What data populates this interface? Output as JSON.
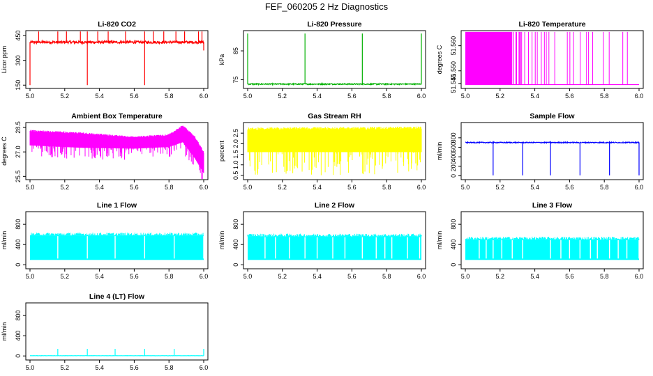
{
  "title": "FEF_060205  2 Hz Diagnostics",
  "chart_data": [
    {
      "type": "line",
      "title": "Li-820 CO2",
      "ylabel": "Licor ppm",
      "color": "#ff0000",
      "xlim": [
        5.0,
        6.0
      ],
      "ylim": [
        130,
        480
      ],
      "xticks": [
        "5.0",
        "5.2",
        "5.4",
        "5.6",
        "5.8",
        "6.0"
      ],
      "yticks": [
        {
          "v": 150,
          "label": "150"
        },
        {
          "v": 300,
          "label": "300"
        },
        {
          "v": 450,
          "label": "450"
        }
      ],
      "pattern": "level_spikes",
      "baseline": 410,
      "noise": 8,
      "spikes_up": [
        5.05,
        5.16,
        5.21,
        5.29,
        5.33,
        5.39,
        5.45,
        5.55,
        5.66,
        5.71,
        5.77,
        5.84,
        5.89,
        5.97,
        5.99
      ],
      "spike_up_to": 475,
      "spikes_down": [
        {
          "x": 5.0,
          "to": 150
        },
        {
          "x": 5.33,
          "to": 150
        },
        {
          "x": 5.66,
          "to": 150
        },
        {
          "x": 6.0,
          "to": 360
        }
      ]
    },
    {
      "type": "line",
      "title": "Li-820 Pressure",
      "ylabel": "kPa",
      "color": "#00b000",
      "xlim": [
        5.0,
        6.0
      ],
      "ylim": [
        72,
        92
      ],
      "xticks": [
        "5.0",
        "5.2",
        "5.4",
        "5.6",
        "5.8",
        "6.0"
      ],
      "yticks": [
        {
          "v": 75,
          "label": "75"
        },
        {
          "v": 85,
          "label": "85"
        }
      ],
      "pattern": "level_spikes",
      "baseline": 73.5,
      "noise": 0.2,
      "spikes_up": [
        5.0,
        5.33,
        5.66,
        6.0
      ],
      "spike_up_to": 91,
      "spikes_down": []
    },
    {
      "type": "line",
      "title": "Li-820 Temperature",
      "ylabel": "degrees C",
      "color": "#ff00ff",
      "xlim": [
        5.0,
        6.0
      ],
      "ylim": [
        51.543,
        51.566
      ],
      "xticks": [
        "5.0",
        "5.2",
        "5.4",
        "5.6",
        "5.8",
        "6.0"
      ],
      "yticks": [
        {
          "v": 51.545,
          "label": "51.545"
        },
        {
          "v": 51.55,
          "label": "51.550"
        },
        {
          "v": 51.56,
          "label": "51.560"
        }
      ],
      "pattern": "binary",
      "low": 51.5445,
      "high": 51.5655,
      "solid_until": 5.27,
      "density_decay": 0.75
    },
    {
      "type": "line",
      "title": "Ambient Box Temperature",
      "ylabel": "degrees C",
      "color": "#ff00ff",
      "xlim": [
        5.0,
        6.0
      ],
      "ylim": [
        25.3,
        28.8
      ],
      "xticks": [
        "5.0",
        "5.2",
        "5.4",
        "5.6",
        "5.8",
        "6.0"
      ],
      "yticks": [
        {
          "v": 25.5,
          "label": "25.5"
        },
        {
          "v": 27.0,
          "label": "27.0"
        },
        {
          "v": 28.5,
          "label": "28.5"
        }
      ],
      "pattern": "band",
      "band_top": [
        [
          5.0,
          28.3
        ],
        [
          5.3,
          28.15
        ],
        [
          5.6,
          27.9
        ],
        [
          5.8,
          28.05
        ],
        [
          5.88,
          28.6
        ],
        [
          5.95,
          27.9
        ],
        [
          6.0,
          27.0
        ]
      ],
      "band_bottom": [
        [
          5.0,
          27.4
        ],
        [
          5.3,
          27.25
        ],
        [
          5.6,
          27.2
        ],
        [
          5.8,
          27.3
        ],
        [
          5.88,
          27.6
        ],
        [
          5.95,
          26.6
        ],
        [
          6.0,
          25.7
        ]
      ],
      "dip_depth": 0.7
    },
    {
      "type": "line",
      "title": "Gas Stream RH",
      "ylabel": "percent",
      "color": "#ffff00",
      "xlim": [
        5.0,
        6.0
      ],
      "ylim": [
        0.3,
        3.0
      ],
      "xticks": [
        "5.0",
        "5.2",
        "5.4",
        "5.6",
        "5.8",
        "6.0"
      ],
      "yticks": [
        {
          "v": 0.5,
          "label": "0.5"
        },
        {
          "v": 1.0,
          "label": "1.0"
        },
        {
          "v": 1.5,
          "label": "1.5"
        },
        {
          "v": 2.0,
          "label": "2.0"
        },
        {
          "v": 2.5,
          "label": "2.5"
        }
      ],
      "pattern": "band",
      "band_top": [
        [
          5.0,
          2.7
        ],
        [
          6.0,
          2.75
        ]
      ],
      "band_bottom": [
        [
          5.0,
          1.6
        ],
        [
          6.0,
          1.6
        ]
      ],
      "dip_depth": 1.1
    },
    {
      "type": "line",
      "title": "Sample Flow",
      "ylabel": "ml/min",
      "color": "#0000ff",
      "xlim": [
        5.0,
        6.0
      ],
      "ylim": [
        -80,
        1120
      ],
      "xticks": [
        "5.0",
        "5.2",
        "5.4",
        "5.6",
        "5.8",
        "6.0"
      ],
      "yticks": [
        {
          "v": 0,
          "label": "0"
        },
        {
          "v": 200,
          "label": "200"
        },
        {
          "v": 400,
          "label": "400"
        },
        {
          "v": 600,
          "label": "600"
        },
        {
          "v": 800,
          "label": "800"
        }
      ],
      "pattern": "level_spikes",
      "baseline": 700,
      "noise": 10,
      "spikes_up": [
        5.16,
        5.49,
        5.83
      ],
      "spike_up_to": 730,
      "spikes_down": [
        {
          "x": 5.16,
          "to": 10
        },
        {
          "x": 5.33,
          "to": 10
        },
        {
          "x": 5.49,
          "to": 10
        },
        {
          "x": 5.66,
          "to": 10
        },
        {
          "x": 5.83,
          "to": 10
        },
        {
          "x": 6.0,
          "to": 10
        }
      ]
    },
    {
      "type": "line",
      "title": "Line 1 Flow",
      "ylabel": "ml/min",
      "color": "#00ffff",
      "xlim": [
        5.0,
        6.0
      ],
      "ylim": [
        -80,
        1050
      ],
      "xticks": [
        "5.0",
        "5.2",
        "5.4",
        "5.6",
        "5.8",
        "6.0"
      ],
      "yticks": [
        {
          "v": 0,
          "label": "0"
        },
        {
          "v": 400,
          "label": "400"
        },
        {
          "v": 800,
          "label": "800"
        }
      ],
      "pattern": "switch",
      "high": 580,
      "low": 95,
      "gaps": [
        5.16,
        5.33,
        5.49,
        5.66,
        5.83,
        6.0
      ]
    },
    {
      "type": "line",
      "title": "Line 2 Flow",
      "ylabel": "ml/min",
      "color": "#00ffff",
      "xlim": [
        5.0,
        6.0
      ],
      "ylim": [
        -80,
        1050
      ],
      "xticks": [
        "5.0",
        "5.2",
        "5.4",
        "5.6",
        "5.8",
        "6.0"
      ],
      "yticks": [
        {
          "v": 0,
          "label": "0"
        },
        {
          "v": 400,
          "label": "400"
        },
        {
          "v": 800,
          "label": "800"
        }
      ],
      "pattern": "switch",
      "high": 560,
      "low": 95,
      "gaps": [
        5.1,
        5.16,
        5.24,
        5.33,
        5.4,
        5.49,
        5.56,
        5.66,
        5.74,
        5.79,
        5.83,
        5.92,
        5.99
      ]
    },
    {
      "type": "line",
      "title": "Line 3 Flow",
      "ylabel": "ml/min",
      "color": "#00ffff",
      "xlim": [
        5.0,
        6.0
      ],
      "ylim": [
        -80,
        1050
      ],
      "xticks": [
        "5.0",
        "5.2",
        "5.4",
        "5.6",
        "5.8",
        "6.0"
      ],
      "yticks": [
        {
          "v": 0,
          "label": "0"
        },
        {
          "v": 400,
          "label": "400"
        },
        {
          "v": 800,
          "label": "800"
        }
      ],
      "pattern": "switch",
      "high": 500,
      "low": 95,
      "gaps": [
        5.08,
        5.12,
        5.16,
        5.21,
        5.27,
        5.33,
        5.49,
        5.55,
        5.6,
        5.66,
        5.72,
        5.76,
        5.83,
        5.88,
        5.93,
        6.0
      ]
    },
    {
      "type": "line",
      "title": "Line 4 (LT) Flow",
      "ylabel": "ml/min",
      "color": "#00ffff",
      "xlim": [
        5.0,
        6.0
      ],
      "ylim": [
        -80,
        1050
      ],
      "xticks": [
        "5.0",
        "5.2",
        "5.4",
        "5.6",
        "5.8",
        "6.0"
      ],
      "yticks": [
        {
          "v": 0,
          "label": "0"
        },
        {
          "v": 400,
          "label": "400"
        },
        {
          "v": 800,
          "label": "800"
        }
      ],
      "pattern": "level_spikes",
      "baseline": 5,
      "noise": 2,
      "spikes_up": [
        5.16,
        5.33,
        5.49,
        5.66,
        5.83,
        6.0
      ],
      "spike_up_to": 140,
      "spikes_down": []
    }
  ]
}
